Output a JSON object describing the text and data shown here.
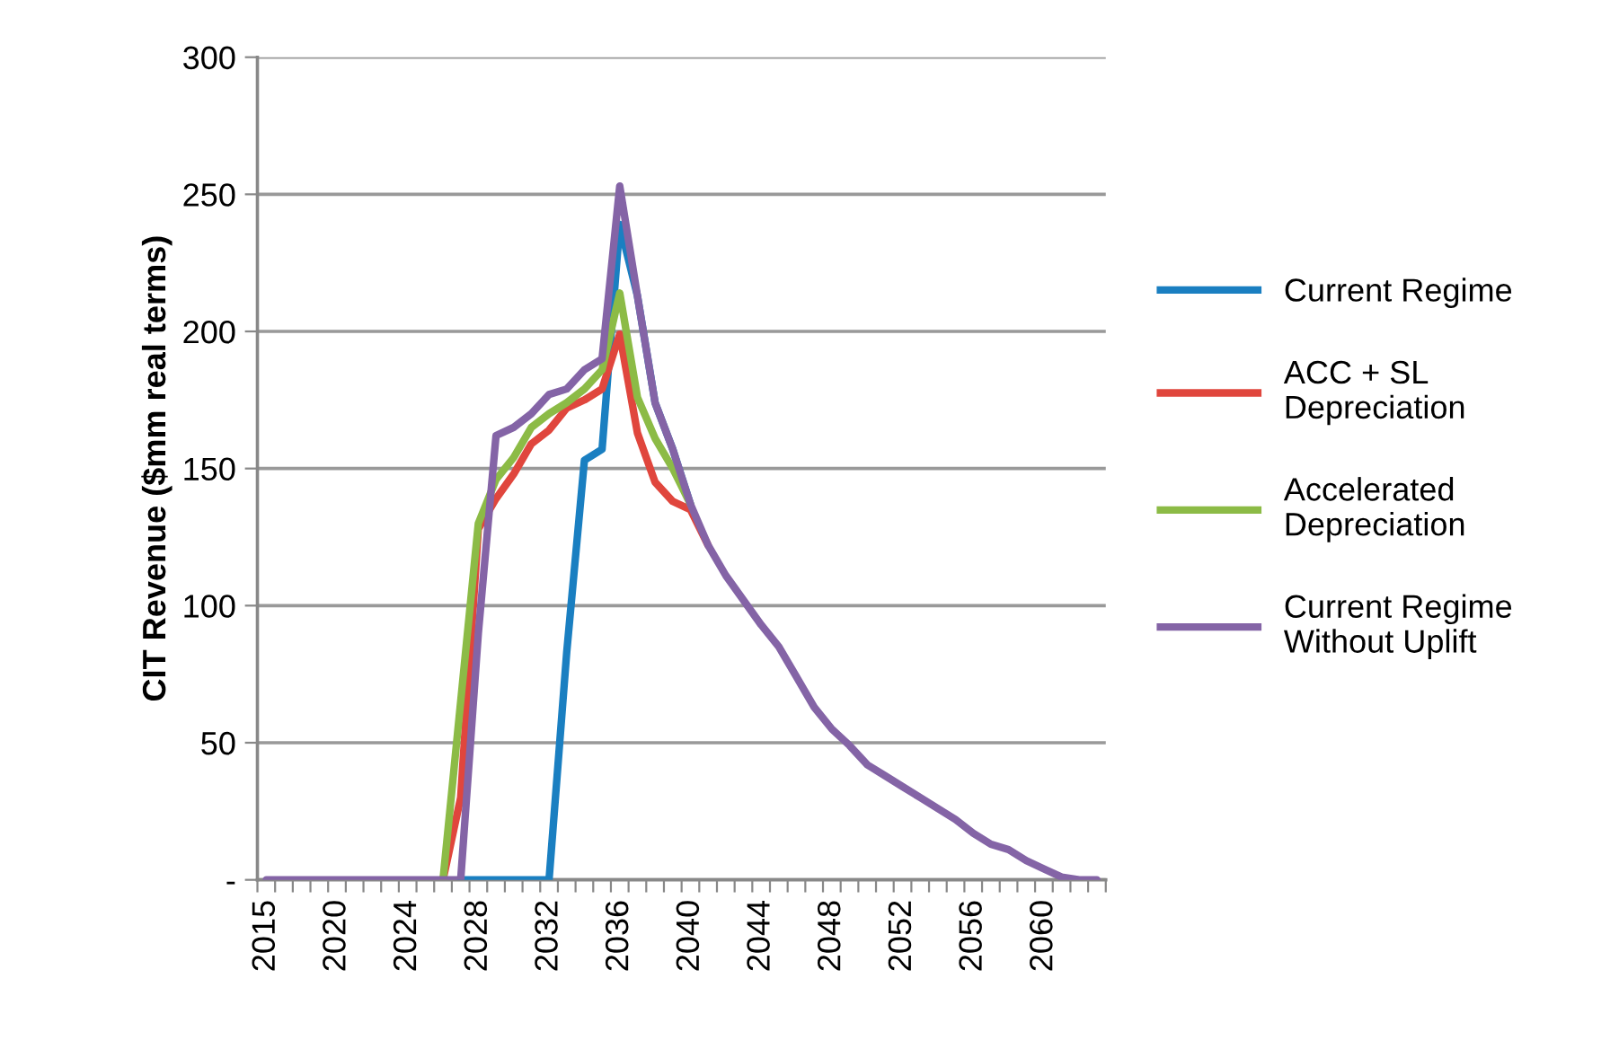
{
  "chart_data": {
    "type": "line",
    "ylabel": "CIT Revenue ($mm real terms)",
    "categories": [
      "2015",
      null,
      null,
      null,
      "2020",
      null,
      null,
      null,
      "2024",
      null,
      null,
      null,
      "2028",
      null,
      null,
      null,
      "2032",
      null,
      null,
      null,
      "2036",
      null,
      null,
      null,
      "2040",
      null,
      null,
      null,
      "2044",
      null,
      null,
      null,
      "2048",
      null,
      null,
      null,
      "2052",
      null,
      null,
      null,
      "2056",
      null,
      null,
      null,
      "2060",
      null,
      null,
      null
    ],
    "series": [
      {
        "name": "Current Regime",
        "color": "#1a7fc1",
        "values": [
          null,
          null,
          null,
          null,
          null,
          null,
          null,
          null,
          null,
          null,
          null,
          0,
          0,
          0,
          0,
          0,
          0,
          83,
          153,
          157,
          239,
          213,
          174,
          157,
          137,
          null,
          null,
          null,
          null,
          null,
          null,
          null,
          null,
          null,
          null,
          null,
          null,
          null,
          null,
          null,
          null,
          null,
          null,
          null,
          null,
          null,
          null,
          null
        ]
      },
      {
        "name": "ACC + SL\nDepreciation",
        "color": "#e0463d",
        "values": [
          null,
          null,
          null,
          null,
          null,
          null,
          null,
          null,
          null,
          null,
          0,
          30,
          128,
          139,
          148,
          159,
          164,
          172,
          175,
          179,
          199,
          163,
          145,
          138,
          135,
          122,
          null,
          null,
          null,
          null,
          null,
          null,
          null,
          null,
          null,
          null,
          null,
          null,
          null,
          null,
          null,
          null,
          null,
          null,
          null,
          null,
          null,
          null
        ]
      },
      {
        "name": "Accelerated\nDepreciation",
        "color": "#8cbb46",
        "values": [
          null,
          null,
          null,
          null,
          null,
          null,
          null,
          null,
          null,
          null,
          0,
          65,
          130,
          146,
          154,
          165,
          170,
          174,
          179,
          186,
          214,
          176,
          161,
          150,
          137,
          null,
          null,
          null,
          null,
          null,
          null,
          null,
          null,
          null,
          null,
          null,
          null,
          null,
          null,
          null,
          null,
          null,
          null,
          null,
          null,
          null,
          null,
          null
        ]
      },
      {
        "name": "Current Regime\nWithout Uplift",
        "color": "#8464a6",
        "values": [
          0,
          0,
          0,
          0,
          0,
          0,
          0,
          0,
          0,
          0,
          0,
          0,
          90,
          162,
          165,
          170,
          177,
          179,
          186,
          190,
          253,
          213,
          174,
          157,
          137,
          122,
          111,
          102,
          93,
          85,
          74,
          63,
          55,
          49,
          42,
          38,
          34,
          30,
          26,
          22,
          17,
          13,
          11,
          7,
          4,
          1,
          0,
          0
        ]
      }
    ],
    "ylim": [
      0,
      300
    ],
    "yticks": [
      {
        "value": 0,
        "label": "-"
      },
      50,
      100,
      150,
      200,
      250,
      300
    ],
    "grid": "y",
    "legend": "right",
    "marker": "none",
    "line_style": "solid"
  }
}
